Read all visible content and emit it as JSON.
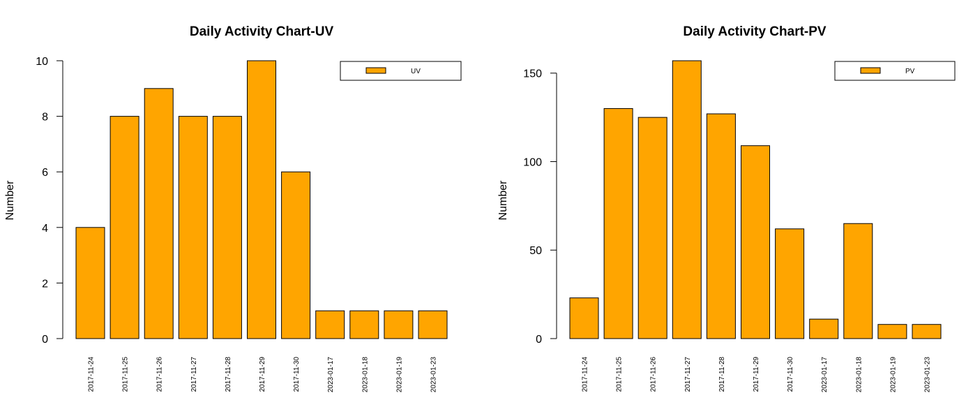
{
  "bar_color": "#FFA500",
  "chart_data": [
    {
      "type": "bar",
      "title": "Daily Activity Chart-UV",
      "ylabel": "Number",
      "xlabel": "",
      "ylim": [
        0,
        10
      ],
      "yticks": [
        0,
        2,
        4,
        6,
        8,
        10
      ],
      "categories": [
        "2017-11-24",
        "2017-11-25",
        "2017-11-26",
        "2017-11-27",
        "2017-11-28",
        "2017-11-29",
        "2017-11-30",
        "2023-01-17",
        "2023-01-18",
        "2023-01-19",
        "2023-01-23"
      ],
      "series": [
        {
          "name": "UV",
          "values": [
            4,
            8,
            9,
            8,
            8,
            10,
            6,
            1,
            1,
            1,
            1
          ]
        }
      ],
      "legend": "top-right",
      "grid": false
    },
    {
      "type": "bar",
      "title": "Daily Activity Chart-PV",
      "ylabel": "Number",
      "xlabel": "",
      "ylim": [
        0,
        157
      ],
      "yticks": [
        0,
        50,
        100,
        150
      ],
      "categories": [
        "2017-11-24",
        "2017-11-25",
        "2017-11-26",
        "2017-11-27",
        "2017-11-28",
        "2017-11-29",
        "2017-11-30",
        "2023-01-17",
        "2023-01-18",
        "2023-01-19",
        "2023-01-23"
      ],
      "series": [
        {
          "name": "PV",
          "values": [
            23,
            130,
            125,
            157,
            127,
            109,
            62,
            11,
            65,
            8,
            8
          ]
        }
      ],
      "legend": "top-right",
      "grid": false
    }
  ]
}
